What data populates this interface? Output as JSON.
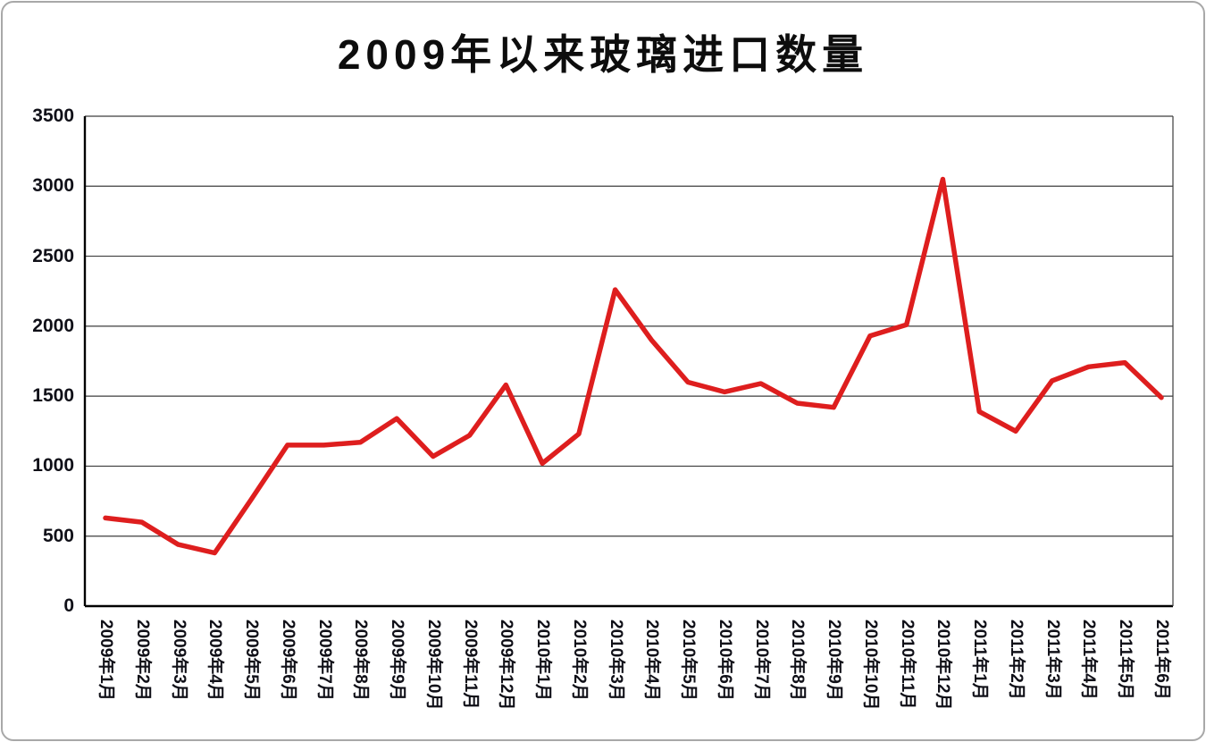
{
  "chart_data": {
    "type": "line",
    "title": "2009年以来玻璃进口数量",
    "xlabel": "",
    "ylabel": "",
    "categories": [
      "2009年1月",
      "2009年2月",
      "2009年3月",
      "2009年4月",
      "2009年5月",
      "2009年6月",
      "2009年7月",
      "2009年8月",
      "2009年9月",
      "2009年10月",
      "2009年11月",
      "2009年12月",
      "2010年1月",
      "2010年2月",
      "2010年3月",
      "2010年4月",
      "2010年5月",
      "2010年6月",
      "2010年7月",
      "2010年8月",
      "2010年9月",
      "2010年10月",
      "2010年11月",
      "2010年12月",
      "2011年1月",
      "2011年2月",
      "2011年3月",
      "2011年4月",
      "2011年5月",
      "2011年6月"
    ],
    "values": [
      630,
      600,
      440,
      380,
      760,
      1150,
      1150,
      1170,
      1340,
      1070,
      1220,
      1580,
      1020,
      1230,
      2260,
      1900,
      1600,
      1530,
      1590,
      1450,
      1420,
      1930,
      2010,
      3050,
      1390,
      1250,
      1610,
      1710,
      1740,
      1490
    ],
    "ylim": [
      0,
      3500
    ],
    "yticks": [
      0,
      500,
      1000,
      1500,
      2000,
      2500,
      3000,
      3500
    ],
    "grid": true,
    "legend": "none",
    "series_color": "#de1e1e",
    "gridline_color": "#3d3d3d",
    "axis_color": "#000000"
  }
}
